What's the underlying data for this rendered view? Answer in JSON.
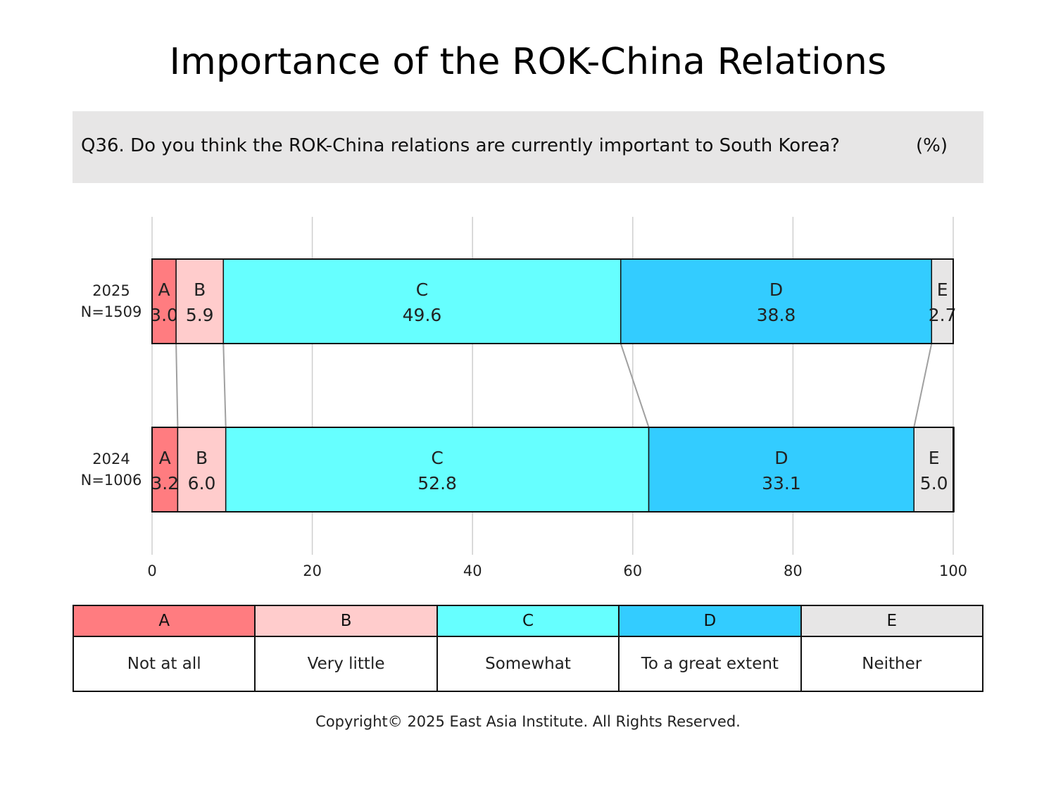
{
  "title": "Importance of the ROK-China Relations",
  "question": {
    "text": "Q36. Do you think the ROK-China relations are currently important to South Korea?",
    "unit": "(%)"
  },
  "chart_data": {
    "type": "bar",
    "orientation": "horizontal-stacked",
    "xlim": [
      0,
      100
    ],
    "x_ticks": [
      "0",
      "20",
      "40",
      "60",
      "80",
      "100"
    ],
    "grid": true,
    "rows": [
      {
        "year": "2025",
        "n": "N=1509",
        "values": [
          3.0,
          5.9,
          49.6,
          38.8,
          2.7
        ],
        "value_labels": [
          "3.0",
          "5.9",
          "49.6",
          "38.8",
          "2.7"
        ]
      },
      {
        "year": "2024",
        "n": "N=1006",
        "values": [
          3.2,
          6.0,
          52.8,
          33.1,
          5.0
        ],
        "value_labels": [
          "3.2",
          "6.0",
          "52.8",
          "33.1",
          "5.0"
        ]
      }
    ],
    "series": [
      {
        "key": "A",
        "name": "Not at all",
        "color": "#ff7c80"
      },
      {
        "key": "B",
        "name": "Very little",
        "color": "#ffcccc"
      },
      {
        "key": "C",
        "name": "Somewhat",
        "color": "#66ffff"
      },
      {
        "key": "D",
        "name": "To a great extent",
        "color": "#33ccff"
      },
      {
        "key": "E",
        "name": "Neither",
        "color": "#e7e6e6"
      }
    ]
  },
  "copyright": "Copyright© 2025 East Asia Institute. All Rights Reserved."
}
